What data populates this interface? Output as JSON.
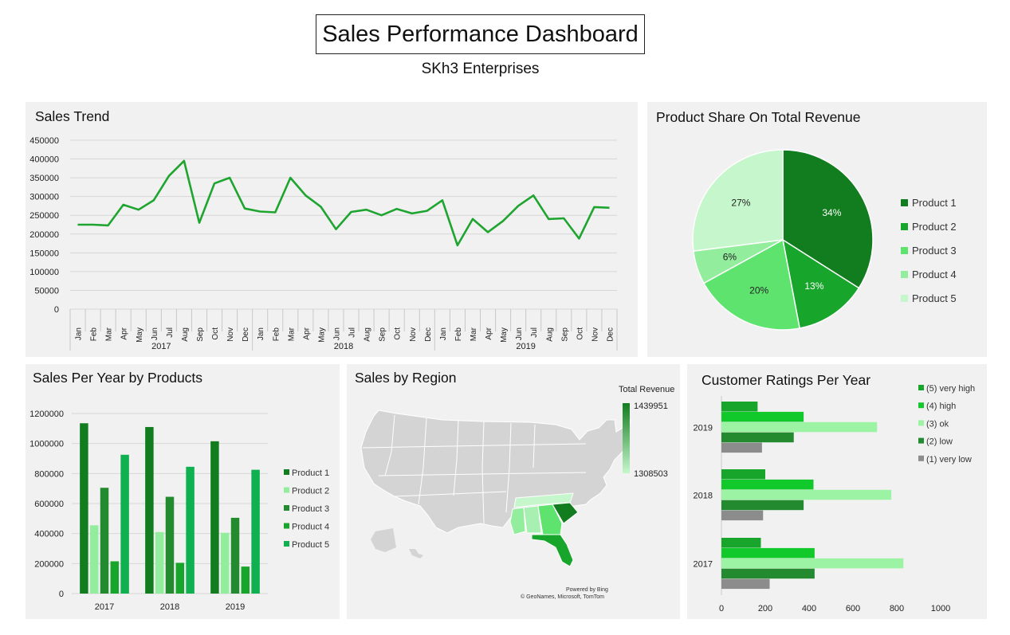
{
  "header": {
    "title": "Sales Performance Dashboard",
    "subtitle": "SKh3 Enterprises"
  },
  "colors": {
    "product_1": "#127d1f",
    "product_2": "#17a62b",
    "product_3": "#5fe36f",
    "product_4": "#92ee9c",
    "product_5": "#c6f6cc",
    "line": "#1ea52f",
    "panel_bg": "#f1f1f1"
  },
  "panels": {
    "sales_trend": {
      "title": "Sales Trend"
    },
    "product_share": {
      "title": "Product Share On Total Revenue"
    },
    "sales_per_year": {
      "title": "Sales Per Year by Products"
    },
    "sales_region": {
      "title": "Sales by Region",
      "legend_title": "Total Revenue",
      "legend_max": "1439951",
      "legend_min": "1308503",
      "credit_line1": "Powered by Bing",
      "credit_line2": "© GeoNames, Microsoft, TomTom"
    },
    "ratings": {
      "title": "Customer Ratings Per  Year"
    }
  },
  "chart_data": [
    {
      "id": "sales_trend",
      "type": "line",
      "title": "Sales Trend",
      "months": [
        "Jan",
        "Feb",
        "Mar",
        "Apr",
        "May",
        "Jun",
        "Jul",
        "Aug",
        "Sep",
        "Oct",
        "Nov",
        "Dec"
      ],
      "years": [
        "2017",
        "2018",
        "2019"
      ],
      "values": [
        225000,
        225000,
        223000,
        278000,
        265000,
        290000,
        355000,
        395000,
        230000,
        335000,
        350000,
        268000,
        260000,
        258000,
        350000,
        303000,
        273000,
        213000,
        259000,
        265000,
        250000,
        267000,
        255000,
        262000,
        290000,
        170000,
        240000,
        205000,
        235000,
        275000,
        303000,
        240000,
        242000,
        188000,
        272000,
        270000
      ],
      "yticks": [
        "450000",
        "400000",
        "350000",
        "300000",
        "250000",
        "200000",
        "150000",
        "100000",
        "50000",
        "0"
      ],
      "ylim": [
        0,
        450000
      ]
    },
    {
      "id": "product_share",
      "type": "pie",
      "title": "Product Share On Total Revenue",
      "labels": [
        "Product 1",
        "Product 2",
        "Product 3",
        "Product 4",
        "Product 5"
      ],
      "values": [
        34,
        13,
        20,
        6,
        27
      ],
      "value_labels": [
        "34%",
        "13%",
        "20%",
        "6%",
        "27%"
      ]
    },
    {
      "id": "sales_per_year",
      "type": "bar",
      "title": "Sales Per Year by Products",
      "categories": [
        "2017",
        "2018",
        "2019"
      ],
      "series": [
        {
          "name": "Product 1",
          "values": [
            1135000,
            1110000,
            1015000
          ]
        },
        {
          "name": "Product 2",
          "values": [
            455000,
            410000,
            405000
          ]
        },
        {
          "name": "Product 3",
          "values": [
            705000,
            645000,
            505000
          ]
        },
        {
          "name": "Product 4",
          "values": [
            215000,
            205000,
            180000
          ]
        },
        {
          "name": "Product 5",
          "values": [
            925000,
            845000,
            825000
          ]
        }
      ],
      "yticks": [
        "1200000",
        "1000000",
        "800000",
        "600000",
        "400000",
        "200000",
        "0"
      ],
      "ylim": [
        0,
        1200000
      ]
    },
    {
      "id": "ratings",
      "type": "bar",
      "orientation": "horizontal",
      "title": "Customer Ratings Per  Year",
      "categories": [
        "2019",
        "2018",
        "2017"
      ],
      "series": [
        {
          "name": "(5) very high",
          "values": [
            165,
            200,
            180
          ]
        },
        {
          "name": "(4) high",
          "values": [
            375,
            420,
            425
          ]
        },
        {
          "name": "(3) ok",
          "values": [
            710,
            775,
            830
          ]
        },
        {
          "name": "(2) low",
          "values": [
            330,
            375,
            425
          ]
        },
        {
          "name": "(1) very low",
          "values": [
            185,
            190,
            220
          ]
        }
      ],
      "xticks": [
        "0",
        "200",
        "400",
        "600",
        "800",
        "1000"
      ],
      "xlim": [
        0,
        1000
      ]
    }
  ]
}
